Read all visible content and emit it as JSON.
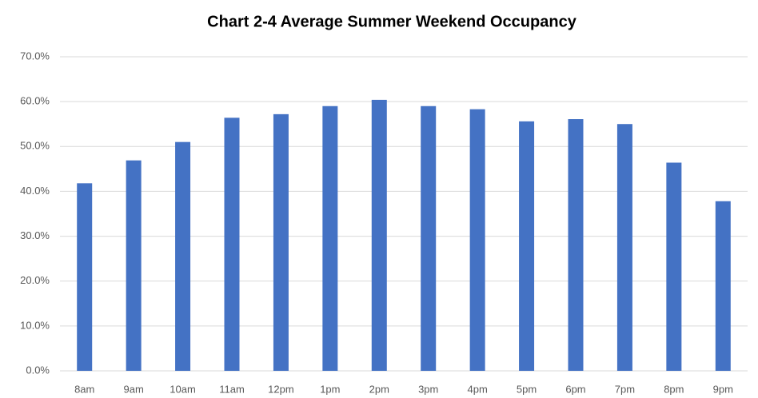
{
  "chart_data": {
    "type": "bar",
    "title": "Chart 2-4  Average Summer Weekend Occupancy",
    "categories": [
      "8am",
      "9am",
      "10am",
      "11am",
      "12pm",
      "1pm",
      "2pm",
      "3pm",
      "4pm",
      "5pm",
      "6pm",
      "7pm",
      "8pm",
      "9pm"
    ],
    "values": [
      41.8,
      46.9,
      51.0,
      56.4,
      57.2,
      59.0,
      60.4,
      59.0,
      58.3,
      55.6,
      56.1,
      55.0,
      46.4,
      37.8
    ],
    "color": "#4472c4",
    "ylim": [
      0,
      70
    ],
    "yticks": [
      {
        "value": 0,
        "label": "0.0%"
      },
      {
        "value": 10,
        "label": "10.0%"
      },
      {
        "value": 20,
        "label": "20.0%"
      },
      {
        "value": 30,
        "label": "30.0%"
      },
      {
        "value": 40,
        "label": "40.0%"
      },
      {
        "value": 50,
        "label": "50.0%"
      },
      {
        "value": 60,
        "label": "60.0%"
      },
      {
        "value": 70,
        "label": "70.0%"
      }
    ],
    "grid": true
  }
}
